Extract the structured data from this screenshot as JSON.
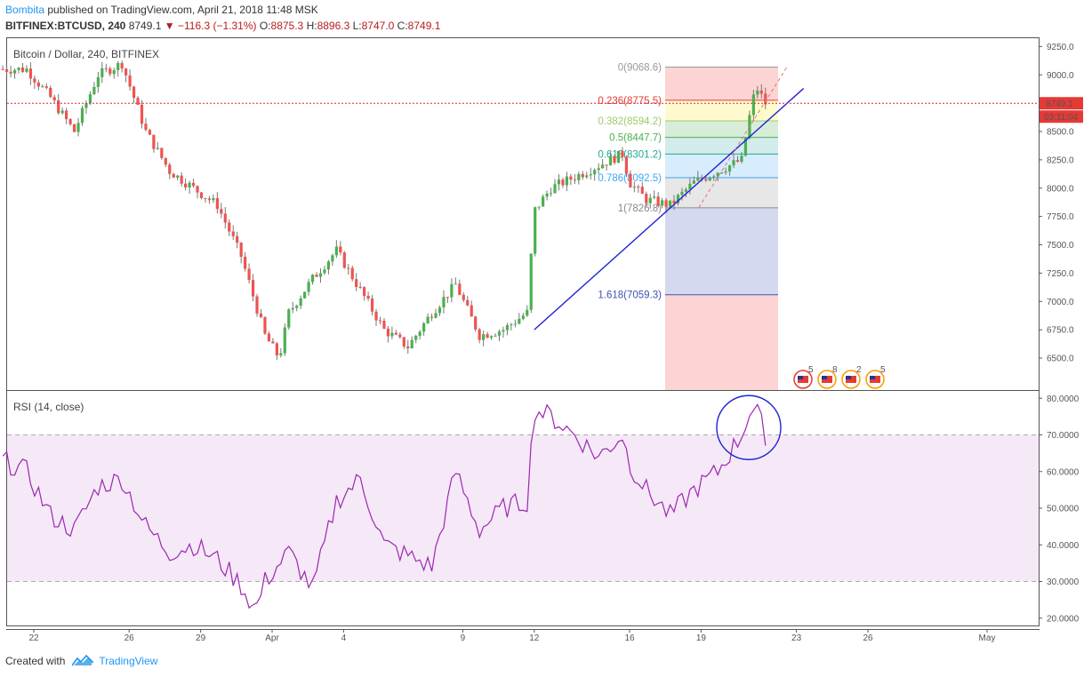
{
  "header": {
    "author": "Bombita",
    "published": "published on TradingView.com, April 21, 2018 11:48 MSK",
    "symbol": "BITFINEX:BTCUSD, 240",
    "last": "8749.1",
    "change": "−116.3 (−1.31%)",
    "o_label": "O:",
    "o_value": "8875.3",
    "h_label": "H:",
    "h_value": "8896.3",
    "l_label": "L:",
    "l_value": "8747.0",
    "c_label": "C:",
    "c_value": "8749.1"
  },
  "footer": {
    "created_with": "Created with",
    "brand": "TradingView"
  },
  "colors": {
    "up": "#4caf50",
    "down": "#ef5350",
    "rsi_line": "#9c27b0",
    "trendline": "#1e22d8",
    "price_line": "#d32f2f"
  },
  "chart_data": [
    {
      "type": "candlestick",
      "title": "Bitcoin / Dollar, 240, BITFINEX",
      "ylim": [
        6300,
        9300
      ],
      "y_ticks": [
        "9250.0",
        "9000.0",
        "8750.0",
        "8500.0",
        "8250.0",
        "8000.0",
        "7750.0",
        "7500.0",
        "7250.0",
        "7000.0",
        "6750.0",
        "6500.0"
      ],
      "x_ticks": [
        {
          "label": "22",
          "day": 21.3
        },
        {
          "label": "26",
          "day": 25.3
        },
        {
          "label": "29",
          "day": 28.3
        },
        {
          "label": "Apr",
          "day": 31.3
        },
        {
          "label": "4",
          "day": 34.3
        },
        {
          "label": "9",
          "day": 39.3
        },
        {
          "label": "12",
          "day": 42.3
        },
        {
          "label": "16",
          "day": 46.3
        },
        {
          "label": "19",
          "day": 49.3
        },
        {
          "label": "23",
          "day": 53.3
        },
        {
          "label": "26",
          "day": 56.3
        },
        {
          "label": "May",
          "day": 61.3
        }
      ],
      "last_price_label": "8749.1",
      "countdown_label": "03:11:04",
      "last_price": 8749.1,
      "price_path": [
        [
          20,
          9050
        ],
        [
          21,
          9050
        ],
        [
          22,
          8800
        ],
        [
          23,
          8500
        ],
        [
          24,
          9000
        ],
        [
          25,
          9100
        ],
        [
          26,
          8500
        ],
        [
          27,
          8150
        ],
        [
          28,
          8000
        ],
        [
          29,
          7850
        ],
        [
          30,
          7400
        ],
        [
          31,
          6700
        ],
        [
          31.6,
          6500
        ],
        [
          32,
          6900
        ],
        [
          33,
          7200
        ],
        [
          34,
          7450
        ],
        [
          35,
          7100
        ],
        [
          36,
          6750
        ],
        [
          37,
          6600
        ],
        [
          38,
          6900
        ],
        [
          39,
          7150
        ],
        [
          40,
          6700
        ],
        [
          41,
          6750
        ],
        [
          42,
          6900
        ],
        [
          42.3,
          7800
        ],
        [
          43,
          8000
        ],
        [
          44,
          8100
        ],
        [
          45,
          8200
        ],
        [
          46,
          8300
        ],
        [
          46.3,
          8050
        ],
        [
          47,
          7900
        ],
        [
          48,
          7850
        ],
        [
          49,
          8050
        ],
        [
          50,
          8150
        ],
        [
          51,
          8250
        ],
        [
          51.3,
          8600
        ],
        [
          51.6,
          8900
        ],
        [
          52,
          8749
        ]
      ],
      "fib_levels": [
        {
          "ratio": "0",
          "price": 9068.6,
          "label": "0(9068.6)"
        },
        {
          "ratio": "0.236",
          "price": 8775.5,
          "label": "0.236(8775.5)"
        },
        {
          "ratio": "0.382",
          "price": 8594.2,
          "label": "0.382(8594.2)"
        },
        {
          "ratio": "0.5",
          "price": 8447.7,
          "label": "0.5(8447.7)"
        },
        {
          "ratio": "0.618",
          "price": 8301.2,
          "label": "0.618(8301.2)"
        },
        {
          "ratio": "0.786",
          "price": 8092.5,
          "label": "0.786(8092.5)"
        },
        {
          "ratio": "1",
          "price": 7826.8,
          "label": "1(7826.8)"
        },
        {
          "ratio": "1.618",
          "price": 7059.3,
          "label": "1.618(7059.3)"
        }
      ],
      "trendline": [
        [
          42.3,
          6750
        ],
        [
          53.6,
          8880
        ]
      ],
      "event_counts": [
        "5",
        "8",
        "2",
        "5"
      ]
    },
    {
      "type": "line",
      "title": "RSI (14, close)",
      "ylim": [
        18,
        82
      ],
      "y_ticks": [
        "80.0000",
        "70.0000",
        "60.0000",
        "50.0000",
        "40.0000",
        "30.0000",
        "20.0000"
      ],
      "overbought": 70,
      "oversold": 30,
      "rsi_path": [
        [
          20,
          63
        ],
        [
          21,
          60
        ],
        [
          22,
          48
        ],
        [
          23,
          44
        ],
        [
          24,
          56
        ],
        [
          25,
          58
        ],
        [
          26,
          45
        ],
        [
          27,
          38
        ],
        [
          28,
          40
        ],
        [
          29,
          36
        ],
        [
          30,
          29
        ],
        [
          30.6,
          22
        ],
        [
          31,
          30
        ],
        [
          32,
          38
        ],
        [
          33,
          28
        ],
        [
          34,
          52
        ],
        [
          35,
          58
        ],
        [
          36,
          40
        ],
        [
          37,
          37
        ],
        [
          38,
          34
        ],
        [
          39,
          60
        ],
        [
          40,
          44
        ],
        [
          41,
          50
        ],
        [
          42,
          52
        ],
        [
          42.3,
          77
        ],
        [
          43,
          75
        ],
        [
          44,
          70
        ],
        [
          45,
          64
        ],
        [
          46,
          70
        ],
        [
          46.3,
          62
        ],
        [
          47,
          55
        ],
        [
          48,
          48
        ],
        [
          49,
          55
        ],
        [
          50,
          60
        ],
        [
          51,
          70
        ],
        [
          51.3,
          76
        ],
        [
          51.6,
          77
        ],
        [
          52,
          70
        ]
      ]
    }
  ]
}
